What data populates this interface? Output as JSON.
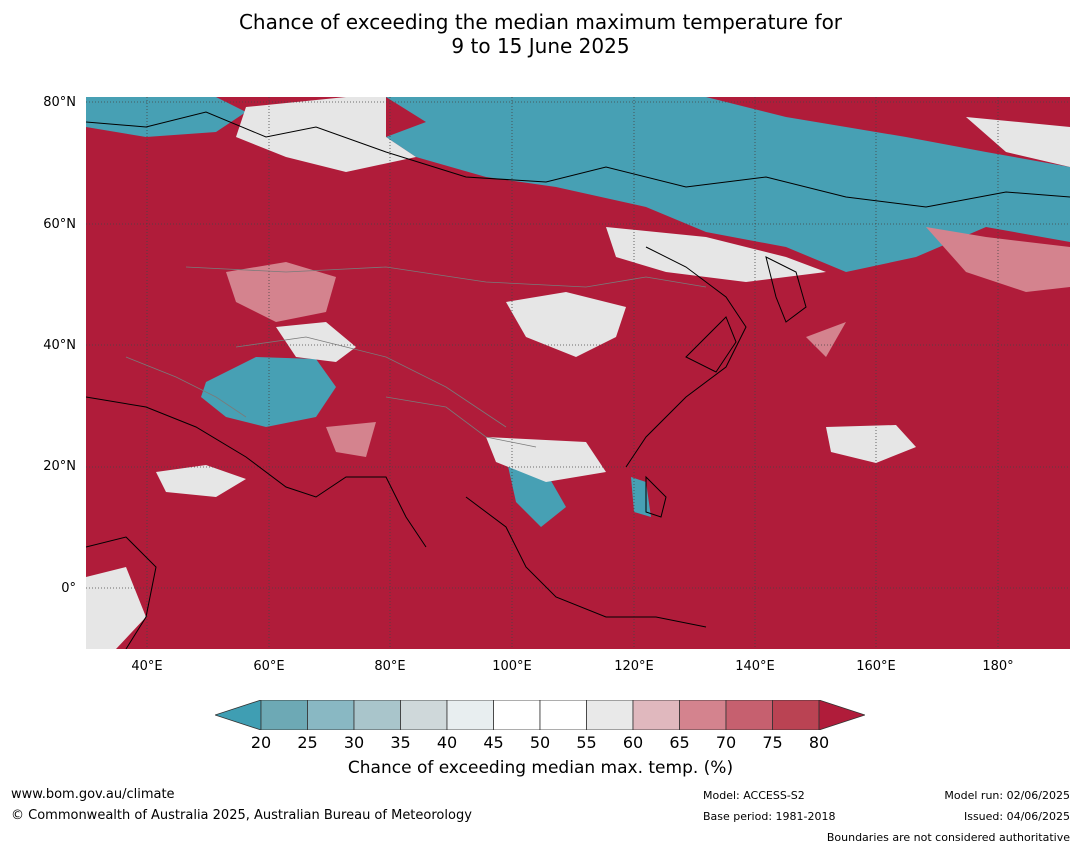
{
  "title_line1": "Chance of exceeding the median maximum temperature for",
  "title_line2": "9 to 15 June 2025",
  "lat_labels": [
    "80°N",
    "60°N",
    "40°N",
    "20°N",
    "0°"
  ],
  "lon_labels": [
    "40°E",
    "60°E",
    "80°E",
    "100°E",
    "120°E",
    "140°E",
    "160°E",
    "180°"
  ],
  "colorbar": {
    "ticks": [
      "20",
      "25",
      "30",
      "35",
      "40",
      "45",
      "50",
      "55",
      "60",
      "65",
      "70",
      "75",
      "80"
    ],
    "colors": [
      "#3f9eb3",
      "#6da9b5",
      "#89b8c3",
      "#a9c5cb",
      "#cfd8da",
      "#e8eef0",
      "#ffffff",
      "#ffffff",
      "#e9e9e9",
      "#e0b8be",
      "#d4838e",
      "#c6606f",
      "#ba4353",
      "#b01c3a"
    ],
    "label": "Chance of exceeding median max. temp. (%)"
  },
  "footer": {
    "url": "www.bom.gov.au/climate",
    "copyright": "© Commonwealth of Australia 2025, Australian Bureau of Meteorology",
    "model": "Model: ACCESS-S2",
    "base_period": "Base period: 1981-2018",
    "model_run": "Model run: 02/06/2025",
    "issued": "Issued: 04/06/2025",
    "disclaimer": "Boundaries are not considered authoritative"
  }
}
